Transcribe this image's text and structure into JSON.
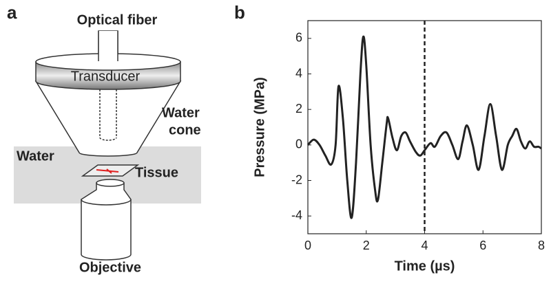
{
  "diagram": {
    "panel_label": "a",
    "fiber": "Optical fiber",
    "transducer": "Transducer",
    "water_cone": [
      "Water",
      "cone"
    ],
    "water": "Water",
    "tissue": "Tissue",
    "objective": "Objective"
  },
  "chart_data": {
    "type": "line",
    "panel_label": "b",
    "xlabel": "Time (µs)",
    "ylabel": "Pressure (MPa)",
    "x": [
      0,
      0.2,
      0.4,
      0.6,
      0.8,
      0.95,
      1.05,
      1.2,
      1.35,
      1.5,
      1.65,
      1.8,
      1.9,
      2.0,
      2.15,
      2.3,
      2.4,
      2.55,
      2.7,
      2.75,
      2.9,
      3.05,
      3.2,
      3.35,
      3.5,
      3.7,
      3.85,
      4.0,
      4.2,
      4.35,
      4.55,
      4.75,
      4.95,
      5.15,
      5.3,
      5.45,
      5.65,
      5.85,
      6.05,
      6.25,
      6.45,
      6.65,
      6.85,
      7.0,
      7.15,
      7.3,
      7.45,
      7.6,
      7.75,
      7.9,
      8.0
    ],
    "series": [
      {
        "color": "#222222",
        "values": [
          0,
          0.3,
          0,
          -0.6,
          -1.1,
          0,
          3.3,
          1.5,
          -2,
          -4.1,
          -1,
          4,
          6.1,
          4.5,
          0,
          -2.5,
          -3.1,
          -1,
          1.2,
          1.5,
          0.4,
          -0.3,
          0.5,
          0.7,
          0.2,
          -0.4,
          -0.6,
          -0.3,
          0.1,
          -0.1,
          0.5,
          0.7,
          0,
          -0.8,
          0.2,
          1.1,
          0,
          -1.4,
          0.5,
          2.3,
          0.5,
          -1.4,
          0,
          0.5,
          0.9,
          0.2,
          -0.2,
          0.2,
          -0.1,
          -0.1,
          -0.2
        ]
      }
    ],
    "vline_x": 4,
    "xlim": [
      0,
      8
    ],
    "xticks": [
      0,
      2,
      4,
      6,
      8
    ],
    "ylim": [
      -5,
      7
    ],
    "yticks": [
      -4,
      -2,
      0,
      2,
      4,
      6
    ]
  }
}
